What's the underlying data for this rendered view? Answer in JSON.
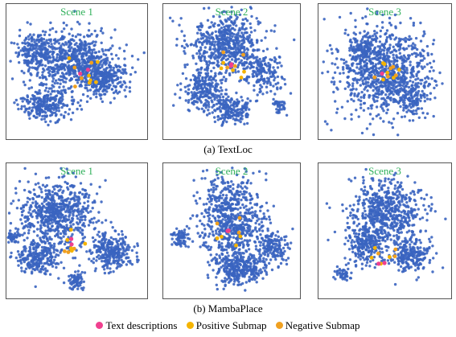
{
  "colors": {
    "points": "#3a64c0",
    "text_descriptions": "#f0408f",
    "positive_submap": "#f5b400",
    "negative_submap": "#f0a020",
    "scene_label": "#2fb05a"
  },
  "captions": {
    "top": "(a) TextLoc",
    "bottom": "(b) MambaPlace"
  },
  "legend": {
    "items": [
      {
        "label": "Text descriptions",
        "color_key": "text_descriptions"
      },
      {
        "label": "Positive Submap",
        "color_key": "positive_submap"
      },
      {
        "label": "Negative Submap",
        "color_key": "negative_submap"
      }
    ]
  },
  "chart_data": [
    {
      "type": "scatter",
      "method": "TextLoc",
      "title": "Scene 1",
      "point_count": 1400,
      "series": [
        {
          "name": "Text descriptions",
          "count": 2
        },
        {
          "name": "Positive Submap",
          "count": 6
        },
        {
          "name": "Negative Submap",
          "count": 4
        }
      ]
    },
    {
      "type": "scatter",
      "method": "TextLoc",
      "title": "Scene 2",
      "point_count": 1200,
      "series": [
        {
          "name": "Text descriptions",
          "count": 2
        },
        {
          "name": "Positive Submap",
          "count": 5
        },
        {
          "name": "Negative Submap",
          "count": 4
        }
      ]
    },
    {
      "type": "scatter",
      "method": "TextLoc",
      "title": "Scene 3",
      "point_count": 1100,
      "series": [
        {
          "name": "Text descriptions",
          "count": 1
        },
        {
          "name": "Positive Submap",
          "count": 6
        },
        {
          "name": "Negative Submap",
          "count": 5
        }
      ]
    },
    {
      "type": "scatter",
      "method": "MambaPlace",
      "title": "Scene 1",
      "point_count": 1300,
      "series": [
        {
          "name": "Text descriptions",
          "count": 2
        },
        {
          "name": "Positive Submap",
          "count": 5
        },
        {
          "name": "Negative Submap",
          "count": 3
        }
      ]
    },
    {
      "type": "scatter",
      "method": "MambaPlace",
      "title": "Scene 2",
      "point_count": 1200,
      "series": [
        {
          "name": "Text descriptions",
          "count": 2
        },
        {
          "name": "Positive Submap",
          "count": 5
        },
        {
          "name": "Negative Submap",
          "count": 3
        }
      ]
    },
    {
      "type": "scatter",
      "method": "MambaPlace",
      "title": "Scene 3",
      "point_count": 1100,
      "series": [
        {
          "name": "Text descriptions",
          "count": 2
        },
        {
          "name": "Positive Submap",
          "count": 4
        },
        {
          "name": "Negative Submap",
          "count": 3
        }
      ]
    }
  ]
}
